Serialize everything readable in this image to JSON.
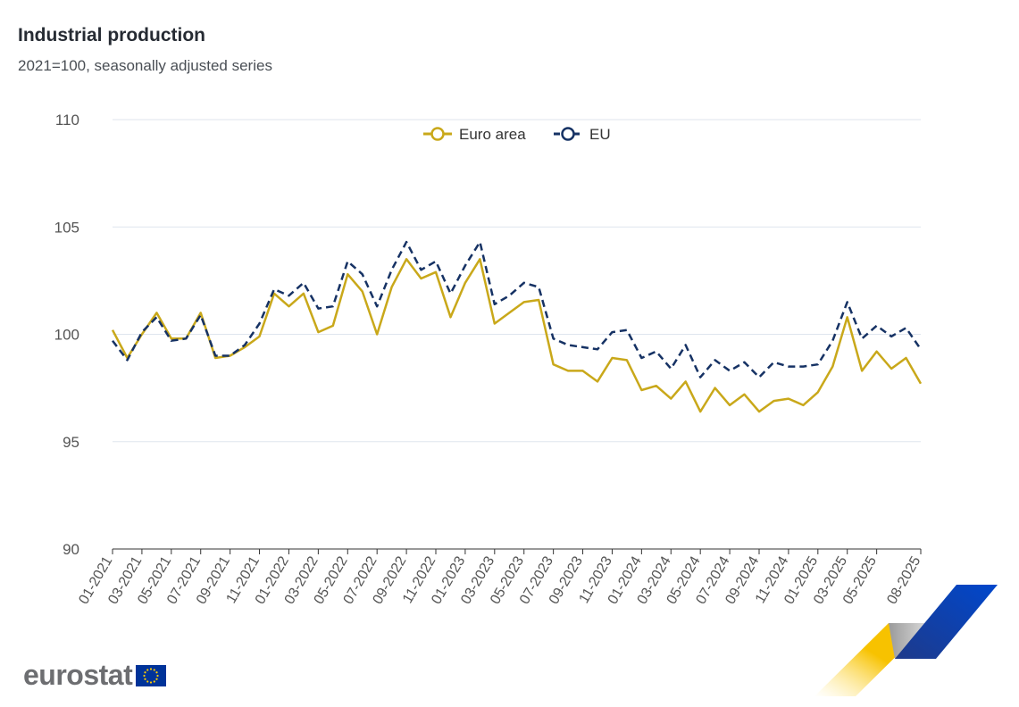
{
  "header": {
    "title": "Industrial production",
    "subtitle": "2021=100, seasonally adjusted series"
  },
  "logo": {
    "text": "eurostat"
  },
  "colors": {
    "euro_area": "#c9a81a",
    "eu": "#163264",
    "grid": "#dfe5ee",
    "axis_text": "#555555"
  },
  "chart_data": {
    "type": "line",
    "title": "Industrial production",
    "subtitle": "2021=100, seasonally adjusted series",
    "xlabel": "",
    "ylabel": "",
    "ylim": [
      90,
      110
    ],
    "yticks": [
      90,
      95,
      100,
      105,
      110
    ],
    "grid": true,
    "legend_position": "top-center",
    "x": [
      "01-2021",
      "02-2021",
      "03-2021",
      "04-2021",
      "05-2021",
      "06-2021",
      "07-2021",
      "08-2021",
      "09-2021",
      "10-2021",
      "11-2021",
      "12-2021",
      "01-2022",
      "02-2022",
      "03-2022",
      "04-2022",
      "05-2022",
      "06-2022",
      "07-2022",
      "08-2022",
      "09-2022",
      "10-2022",
      "11-2022",
      "12-2022",
      "01-2023",
      "02-2023",
      "03-2023",
      "04-2023",
      "05-2023",
      "06-2023",
      "07-2023",
      "08-2023",
      "09-2023",
      "10-2023",
      "11-2023",
      "12-2023",
      "01-2024",
      "02-2024",
      "03-2024",
      "04-2024",
      "05-2024",
      "06-2024",
      "07-2024",
      "08-2024",
      "09-2024",
      "10-2024",
      "11-2024",
      "12-2024",
      "01-2025",
      "02-2025",
      "03-2025",
      "04-2025",
      "05-2025",
      "06-2025",
      "07-2025",
      "08-2025"
    ],
    "tick_labels": [
      "01-2021",
      "03-2021",
      "05-2021",
      "07-2021",
      "09-2021",
      "11-2021",
      "01-2022",
      "03-2022",
      "05-2022",
      "07-2022",
      "09-2022",
      "11-2022",
      "01-2023",
      "03-2023",
      "05-2023",
      "07-2023",
      "09-2023",
      "11-2023",
      "01-2024",
      "03-2024",
      "05-2024",
      "07-2024",
      "09-2024",
      "11-2024",
      "01-2025",
      "03-2025",
      "05-2025",
      "08-2025"
    ],
    "series": [
      {
        "name": "Euro area",
        "style": "solid",
        "values": [
          100.2,
          98.9,
          100.0,
          101.0,
          99.8,
          99.8,
          101.0,
          98.9,
          99.0,
          99.4,
          99.9,
          101.9,
          101.3,
          101.9,
          100.1,
          100.4,
          102.8,
          102.0,
          100.0,
          102.2,
          103.5,
          102.6,
          102.9,
          100.8,
          102.4,
          103.5,
          100.5,
          101.0,
          101.5,
          101.6,
          98.6,
          98.3,
          98.3,
          97.8,
          98.9,
          98.8,
          97.4,
          97.6,
          97.0,
          97.8,
          96.4,
          97.5,
          96.7,
          97.2,
          96.4,
          96.9,
          97.0,
          96.7,
          97.3,
          98.5,
          100.8,
          98.3,
          99.2,
          98.4,
          98.9,
          97.7
        ]
      },
      {
        "name": "EU",
        "style": "dashed",
        "values": [
          99.7,
          98.8,
          100.1,
          100.8,
          99.7,
          99.8,
          100.9,
          99.0,
          99.0,
          99.5,
          100.5,
          102.1,
          101.8,
          102.4,
          101.2,
          101.3,
          103.4,
          102.8,
          101.3,
          103.0,
          104.3,
          103.0,
          103.4,
          101.9,
          103.2,
          104.3,
          101.4,
          101.8,
          102.4,
          102.2,
          99.8,
          99.5,
          99.4,
          99.3,
          100.1,
          100.2,
          98.9,
          99.2,
          98.4,
          99.5,
          98.0,
          98.8,
          98.3,
          98.7,
          98.0,
          98.7,
          98.5,
          98.5,
          98.6,
          99.7,
          101.5,
          99.8,
          100.4,
          99.9,
          100.3,
          99.3
        ]
      }
    ]
  }
}
